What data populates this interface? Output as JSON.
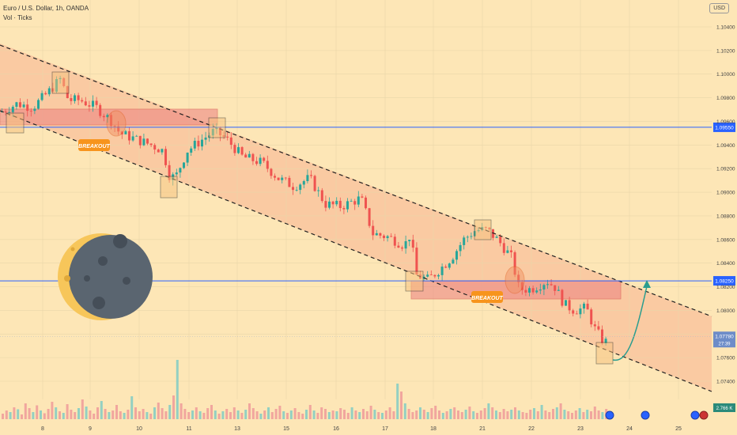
{
  "header": {
    "symbol": "Euro / U.S. Dollar, 1h, OANDA",
    "indicator": "Vol · Ticks",
    "currency": "USD"
  },
  "chart_data": {
    "type": "candlestick",
    "xlabel": "",
    "ylabel": "",
    "x_ticks": [
      "8",
      "9",
      "10",
      "11",
      "13",
      "15",
      "16",
      "17",
      "18",
      "21",
      "22",
      "23",
      "24",
      "25"
    ],
    "y_ticks": [
      "1.10400",
      "1.10200",
      "1.10000",
      "1.09800",
      "1.09600",
      "1.09400",
      "1.09200",
      "1.09000",
      "1.08800",
      "1.08600",
      "1.08400",
      "1.08200",
      "1.08000",
      "1.07800",
      "1.07600",
      "1.07400"
    ],
    "ylim": [
      1.0725,
      1.1055
    ],
    "price_path": [
      {
        "x": 0,
        "y": 1.0968
      },
      {
        "x": 20,
        "y": 1.0975
      },
      {
        "x": 40,
        "y": 1.0972
      },
      {
        "x": 60,
        "y": 1.0985
      },
      {
        "x": 75,
        "y": 1.0996
      },
      {
        "x": 85,
        "y": 1.0978
      },
      {
        "x": 100,
        "y": 1.0978
      },
      {
        "x": 120,
        "y": 1.0972
      },
      {
        "x": 140,
        "y": 1.096
      },
      {
        "x": 150,
        "y": 1.095
      },
      {
        "x": 170,
        "y": 1.0945
      },
      {
        "x": 190,
        "y": 1.094
      },
      {
        "x": 205,
        "y": 1.0935
      },
      {
        "x": 212,
        "y": 1.0915
      },
      {
        "x": 220,
        "y": 1.0912
      },
      {
        "x": 235,
        "y": 1.0935
      },
      {
        "x": 255,
        "y": 1.0945
      },
      {
        "x": 270,
        "y": 1.0952
      },
      {
        "x": 285,
        "y": 1.0945
      },
      {
        "x": 305,
        "y": 1.093
      },
      {
        "x": 330,
        "y": 1.0925
      },
      {
        "x": 350,
        "y": 1.0912
      },
      {
        "x": 370,
        "y": 1.0905
      },
      {
        "x": 390,
        "y": 1.0912
      },
      {
        "x": 410,
        "y": 1.089
      },
      {
        "x": 430,
        "y": 1.0888
      },
      {
        "x": 455,
        "y": 1.0895
      },
      {
        "x": 470,
        "y": 1.0865
      },
      {
        "x": 490,
        "y": 1.0862
      },
      {
        "x": 510,
        "y": 1.0855
      },
      {
        "x": 518,
        "y": 1.0865
      },
      {
        "x": 524,
        "y": 1.083
      },
      {
        "x": 540,
        "y": 1.0826
      },
      {
        "x": 555,
        "y": 1.0835
      },
      {
        "x": 570,
        "y": 1.0845
      },
      {
        "x": 585,
        "y": 1.086
      },
      {
        "x": 600,
        "y": 1.0868
      },
      {
        "x": 615,
        "y": 1.0868
      },
      {
        "x": 630,
        "y": 1.0858
      },
      {
        "x": 645,
        "y": 1.0845
      },
      {
        "x": 655,
        "y": 1.0818
      },
      {
        "x": 670,
        "y": 1.0818
      },
      {
        "x": 690,
        "y": 1.0825
      },
      {
        "x": 700,
        "y": 1.082
      },
      {
        "x": 712,
        "y": 1.0805
      },
      {
        "x": 725,
        "y": 1.08
      },
      {
        "x": 740,
        "y": 1.0802
      },
      {
        "x": 750,
        "y": 1.0785
      },
      {
        "x": 760,
        "y": 1.0775
      },
      {
        "x": 768,
        "y": 1.0772
      }
    ],
    "volume_heights": [
      14,
      22,
      18,
      30,
      25,
      12,
      40,
      28,
      18,
      35,
      22,
      15,
      26,
      44,
      30,
      20,
      16,
      38,
      24,
      18,
      28,
      50,
      32,
      22,
      14,
      30,
      46,
      26,
      18,
      22,
      36,
      20,
      16,
      24,
      58,
      30,
      20,
      26,
      18,
      14,
      30,
      42,
      28,
      20,
      36,
      60,
      150,
      40,
      26,
      18,
      22,
      30,
      20,
      16,
      28,
      36,
      22,
      14,
      20,
      26,
      18,
      30,
      22,
      16,
      24,
      40,
      28,
      20,
      14,
      22,
      30,
      18,
      26,
      34,
      20,
      16,
      22,
      28,
      18,
      14,
      24,
      36,
      22,
      16,
      30,
      26,
      18,
      22,
      20,
      28,
      24,
      16,
      30,
      22,
      18,
      26,
      20,
      34,
      24,
      18,
      16,
      22,
      30,
      20,
      90,
      70,
      40,
      26,
      18,
      22,
      30,
      24,
      18,
      28,
      34,
      22,
      16,
      20,
      26,
      30,
      22,
      18,
      24,
      32,
      20,
      16,
      22,
      28,
      40,
      30,
      22,
      18,
      26,
      20,
      24,
      30,
      22,
      18,
      16,
      24,
      28,
      20,
      36,
      22,
      18,
      26,
      30,
      40,
      24,
      20,
      16,
      22,
      28,
      18,
      24,
      20,
      32,
      22,
      18,
      26
    ],
    "levels": [
      {
        "price": 1.0955,
        "label": "1.09550",
        "color": "#2962ff"
      },
      {
        "price": 1.0825,
        "label": "1.08250",
        "color": "#2962ff"
      }
    ],
    "current_price": {
      "value": 1.0778,
      "label": "1.07780",
      "countdown": "27:39",
      "color": "#6d8cc8"
    },
    "volume_label": "2.766 K",
    "annotations": [
      {
        "text": "BREAKOUT"
      },
      {
        "text": "BREAKOUT"
      }
    ]
  }
}
